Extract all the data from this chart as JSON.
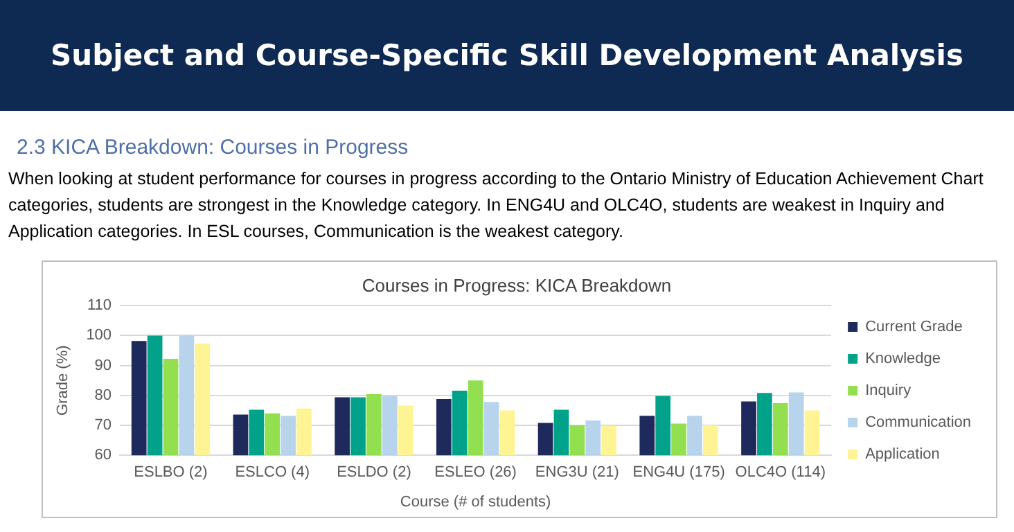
{
  "chart_data": {
    "type": "bar",
    "title": "Courses in Progress: KICA Breakdown",
    "subtitle": "2.3 KICA Breakdown: Courses in Progress",
    "annotations": [
      "Subject and Course-Specific Skill Development Analysis",
      "When looking at student performance for courses in progress according to the Ontario Ministry of Education Achievement Chart categories, students are strongest in the Knowledge category.  In ENG4U and OLC4O, students are weakest in Inquiry and Application categories.  In ESL courses, Communication is the weakest category."
    ],
    "xlabel": "Course (# of students)",
    "ylabel": "Grade (%)",
    "categories": [
      "ESLBO (2)",
      "ESLCO (4)",
      "ESLDO (2)",
      "ESLEO (26)",
      "ENG3U (21)",
      "ENG4U (175)",
      "OLC4O (114)"
    ],
    "series": [
      {
        "name": "Current Grade",
        "color": "#1f2a5c",
        "values": [
          98.2,
          73.6,
          79.4,
          78.8,
          70.8,
          73.2,
          78
        ]
      },
      {
        "name": "Knowledge",
        "color": "#00a38a",
        "values": [
          100,
          75.2,
          79.4,
          81.6,
          75.2,
          79.8,
          80.8
        ]
      },
      {
        "name": "Inquiry",
        "color": "#92e04f",
        "values": [
          92.2,
          74,
          80.4,
          85,
          70,
          70.6,
          77.4
        ]
      },
      {
        "name": "Communication",
        "color": "#b8d4ec",
        "values": [
          100,
          73.2,
          79.8,
          77.8,
          71.6,
          73.2,
          81
        ]
      },
      {
        "name": "Application",
        "color": "#fff494",
        "values": [
          97.4,
          75.6,
          76.6,
          75,
          69.8,
          70,
          75
        ]
      }
    ],
    "ylim": [
      60,
      110
    ],
    "yticks": [
      60,
      70,
      80,
      90,
      100,
      110
    ],
    "grid": "y",
    "legend": "right"
  }
}
